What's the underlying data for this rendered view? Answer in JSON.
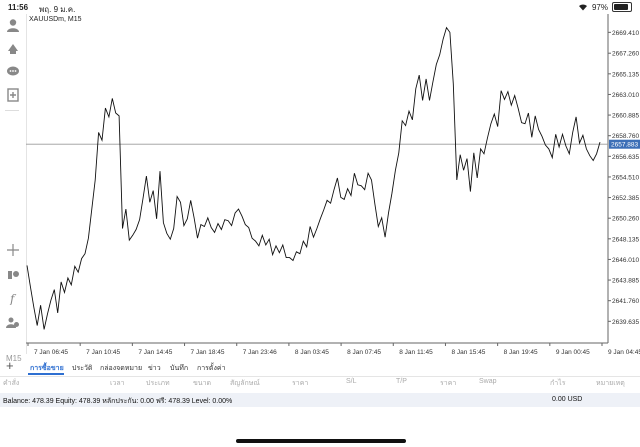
{
  "status": {
    "time": "11:56",
    "date": "พฤ. 9 ม.ค.",
    "battery": "97%"
  },
  "left_toolbar": {
    "tools": [
      "person-icon",
      "indicator-icon",
      "chat-icon",
      "add-chart-icon",
      "crosshair-icon",
      "objects-icon",
      "function-icon",
      "account-icon"
    ],
    "timeframe": "M15"
  },
  "chart": {
    "symbol_label": "XAUUSDm, M15",
    "current_price": "2657.883",
    "price_box_color": "#3c6fb7",
    "chart_data": {
      "type": "line",
      "series": [
        {
          "values": [
            2645.4,
            2643.2,
            2641.1,
            2639.2,
            2641.3,
            2638.8,
            2640.4,
            2641.8,
            2642.9,
            2640.5,
            2643.7,
            2642.6,
            2644.1,
            2643.4,
            2645.3,
            2644.7,
            2646.1,
            2646.6,
            2648.2,
            2651.2,
            2654.2,
            2659.1,
            2658.3,
            2661.6,
            2660.7,
            2662.6,
            2661.1,
            2660.8,
            2649.2,
            2651.2,
            2648.0,
            2648.5,
            2649.1,
            2650.1,
            2652.3,
            2654.6,
            2651.9,
            2653.1,
            2650.2,
            2655.1,
            2649.8,
            2648.7,
            2648.1,
            2649.2,
            2652.5,
            2651.9,
            2649.5,
            2650.2,
            2652.1,
            2650.3,
            2648.2,
            2649.6,
            2649.4,
            2650.3,
            2649.3,
            2648.8,
            2649.7,
            2649.1,
            2650.1,
            2650.0,
            2649.5,
            2650.8,
            2651.2,
            2650.5,
            2649.6,
            2649.3,
            2648.2,
            2647.9,
            2647.4,
            2648.5,
            2647.5,
            2648.1,
            2646.5,
            2647.4,
            2646.7,
            2647.5,
            2646.2,
            2646.2,
            2645.9,
            2646.8,
            2646.6,
            2647.9,
            2647.3,
            2649.4,
            2648.3,
            2649.2,
            2650.2,
            2651.1,
            2652.1,
            2651.8,
            2653.2,
            2654.4,
            2652.4,
            2652.2,
            2653.3,
            2652.6,
            2654.9,
            2653.7,
            2653.6,
            2653.2,
            2654.9,
            2654.2,
            2651.7,
            2649.4,
            2650.3,
            2648.3,
            2650.8,
            2652.8,
            2655.2,
            2657.0,
            2660.3,
            2659.8,
            2661.3,
            2660.4,
            2663.6,
            2665.0,
            2662.4,
            2664.6,
            2662.4,
            2664.3,
            2666.1,
            2667.1,
            2668.7,
            2669.9,
            2669.4,
            2664.1,
            2654.2,
            2656.8,
            2655.2,
            2656.4,
            2653.0,
            2657.0,
            2654.4,
            2657.4,
            2656.9,
            2658.5,
            2660.0,
            2661.0,
            2659.7,
            2663.4,
            2662.5,
            2663.3,
            2661.9,
            2662.9,
            2661.6,
            2660.1,
            2660.0,
            2661.1,
            2658.6,
            2660.8,
            2659.4,
            2658.7,
            2657.8,
            2657.4,
            2656.5,
            2658.9,
            2657.6,
            2658.9,
            2657.7,
            2656.9,
            2659.1,
            2660.7,
            2658.0,
            2658.8,
            2657.4,
            2656.7,
            2656.2,
            2656.9,
            2658.1
          ]
        }
      ],
      "x_ticks": [
        "7 Jan 06:45",
        "7 Jan 10:45",
        "7 Jan 14:45",
        "7 Jan 18:45",
        "7 Jan 23:46",
        "8 Jan 03:45",
        "8 Jan 07:45",
        "8 Jan 11:45",
        "8 Jan 15:45",
        "8 Jan 19:45",
        "9 Jan 00:45",
        "9 Jan 04:45"
      ],
      "y_ticks": [
        2669.41,
        2667.26,
        2665.135,
        2663.01,
        2660.885,
        2658.76,
        2656.635,
        2654.51,
        2652.385,
        2650.26,
        2648.135,
        2646.01,
        2643.885,
        2641.76,
        2639.635
      ],
      "ylim": [
        2637.4,
        2671.3
      ],
      "grid": false,
      "current_line": 2657.883
    }
  },
  "tabs": {
    "items": [
      "การซื้อขาย",
      "ประวัติ",
      "กล่องจดหมาย",
      "ข่าว",
      "บันทึก",
      "การตั้งค่า"
    ],
    "active": 0
  },
  "columns": [
    "คำสั่ง",
    "เวลา",
    "ประเภท",
    "ขนาด",
    "สัญลักษณ์",
    "ราคา",
    "S/L",
    "T/P",
    "ราคา",
    "Swap",
    "กำไร",
    "หมายเหตุ"
  ],
  "balance": {
    "text": "Balance: 478.39 Equity: 478.39 หลักประกัน: 0.00 ฟรี: 478.39 Level: 0.00%",
    "profit": "0.00  USD"
  }
}
